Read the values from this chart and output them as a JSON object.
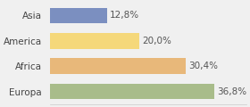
{
  "categories": [
    "Asia",
    "America",
    "Africa",
    "Europa"
  ],
  "values": [
    12.8,
    20.0,
    30.4,
    36.8
  ],
  "labels": [
    "12,8%",
    "20,0%",
    "30,4%",
    "36,8%"
  ],
  "bar_colors": [
    "#7b8fc0",
    "#f5d87a",
    "#e8b87a",
    "#a8bc8a"
  ],
  "background_color": "#f0f0f0",
  "xlim": [
    0,
    44
  ],
  "bar_height": 0.62,
  "label_fontsize": 7.5,
  "tick_fontsize": 7.5
}
